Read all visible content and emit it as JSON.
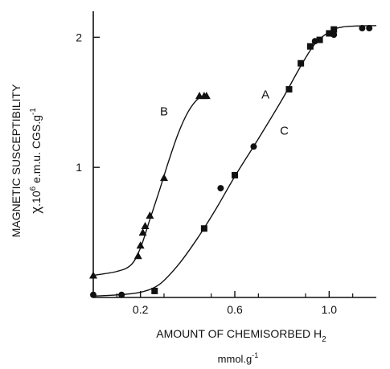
{
  "chart_data": {
    "type": "scatter",
    "ylabel_line1": "MAGNETIC SUSCEPTIBILITY",
    "ylabel_line2_symbol": "χ",
    "ylabel_line2_rest": ".10",
    "ylabel_line2_exp": "6",
    "ylabel_line2_units": " e.m.u. CGS.g",
    "ylabel_line2_units_exp": "-1",
    "xlabel_main": "AMOUNT OF CHEMISORBED H",
    "xlabel_sub": "2",
    "xlabel_units": "mmol.g",
    "xlabel_units_exp": "-1",
    "xlim": [
      0,
      1.2
    ],
    "ylim": [
      0,
      2.2
    ],
    "x_ticks": [
      0.2,
      0.6,
      1.0
    ],
    "x_tick_labels": [
      "0.2",
      "0.6",
      "1.0"
    ],
    "y_ticks": [
      1,
      2
    ],
    "y_tick_labels": [
      "1",
      "2"
    ],
    "grid": false,
    "series": [
      {
        "name": "B",
        "marker": "triangle",
        "points": [
          [
            0.0,
            0.17
          ],
          [
            0.19,
            0.32
          ],
          [
            0.2,
            0.4
          ],
          [
            0.21,
            0.5
          ],
          [
            0.22,
            0.55
          ],
          [
            0.24,
            0.63
          ],
          [
            0.3,
            0.92
          ],
          [
            0.45,
            1.55
          ],
          [
            0.47,
            1.55
          ],
          [
            0.48,
            1.55
          ]
        ],
        "curve": [
          [
            0.0,
            0.17
          ],
          [
            0.1,
            0.2
          ],
          [
            0.16,
            0.25
          ],
          [
            0.2,
            0.38
          ],
          [
            0.24,
            0.6
          ],
          [
            0.28,
            0.82
          ],
          [
            0.32,
            1.05
          ],
          [
            0.36,
            1.26
          ],
          [
            0.4,
            1.42
          ],
          [
            0.44,
            1.52
          ],
          [
            0.48,
            1.56
          ]
        ]
      },
      {
        "name": "A",
        "marker": "square",
        "points": [
          [
            0.26,
            0.05
          ],
          [
            0.47,
            0.53
          ],
          [
            0.6,
            0.94
          ],
          [
            0.83,
            1.6
          ],
          [
            0.88,
            1.8
          ],
          [
            0.92,
            1.93
          ],
          [
            0.96,
            1.98
          ],
          [
            1.0,
            2.03
          ],
          [
            1.02,
            2.06
          ]
        ],
        "curve": null
      },
      {
        "name": "C",
        "marker": "circle",
        "points": [
          [
            0.0,
            0.02
          ],
          [
            0.12,
            0.02
          ],
          [
            0.54,
            0.84
          ],
          [
            0.68,
            1.16
          ],
          [
            0.94,
            1.97
          ],
          [
            1.02,
            2.02
          ],
          [
            1.14,
            2.07
          ],
          [
            1.17,
            2.07
          ]
        ],
        "curve": null
      }
    ],
    "shared_curve_AC": [
      [
        0.0,
        0.01
      ],
      [
        0.1,
        0.02
      ],
      [
        0.2,
        0.04
      ],
      [
        0.28,
        0.1
      ],
      [
        0.36,
        0.25
      ],
      [
        0.44,
        0.45
      ],
      [
        0.52,
        0.68
      ],
      [
        0.6,
        0.93
      ],
      [
        0.7,
        1.22
      ],
      [
        0.8,
        1.52
      ],
      [
        0.88,
        1.78
      ],
      [
        0.94,
        1.95
      ],
      [
        1.0,
        2.04
      ],
      [
        1.06,
        2.08
      ],
      [
        1.2,
        2.09
      ]
    ],
    "annotations": [
      {
        "text": "B",
        "x": 0.3,
        "y": 1.4
      },
      {
        "text": "A",
        "x": 0.73,
        "y": 1.53
      },
      {
        "text": "C",
        "x": 0.81,
        "y": 1.25
      }
    ]
  }
}
